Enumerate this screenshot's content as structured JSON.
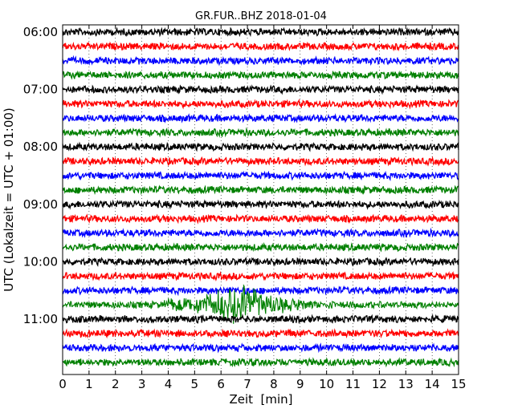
{
  "chart_data": {
    "type": "line",
    "title": "GR.FUR..BHZ 2018-01-04",
    "xlabel": "Zeit  [min]",
    "ylabel": "UTC (Lokalzeit = UTC + 01:00)",
    "xlim": [
      0,
      15
    ],
    "x_ticks": [
      "0",
      "1",
      "2",
      "3",
      "4",
      "5",
      "6",
      "7",
      "8",
      "9",
      "10",
      "11",
      "12",
      "13",
      "14",
      "15"
    ],
    "y_ticks": [
      "06:00",
      "07:00",
      "08:00",
      "09:00",
      "10:00",
      "11:00"
    ],
    "trace_interval_min": 15,
    "grid": "vertical dotted at each minute",
    "colors": [
      "#000000",
      "#ff0000",
      "#0000ff",
      "#008000"
    ],
    "traces": [
      {
        "start": "06:00",
        "color": "#000000"
      },
      {
        "start": "06:15",
        "color": "#ff0000"
      },
      {
        "start": "06:30",
        "color": "#0000ff"
      },
      {
        "start": "06:45",
        "color": "#008000"
      },
      {
        "start": "07:00",
        "color": "#000000"
      },
      {
        "start": "07:15",
        "color": "#ff0000"
      },
      {
        "start": "07:30",
        "color": "#0000ff"
      },
      {
        "start": "07:45",
        "color": "#008000"
      },
      {
        "start": "08:00",
        "color": "#000000"
      },
      {
        "start": "08:15",
        "color": "#ff0000"
      },
      {
        "start": "08:30",
        "color": "#0000ff"
      },
      {
        "start": "08:45",
        "color": "#008000"
      },
      {
        "start": "09:00",
        "color": "#000000"
      },
      {
        "start": "09:15",
        "color": "#ff0000"
      },
      {
        "start": "09:30",
        "color": "#0000ff"
      },
      {
        "start": "09:45",
        "color": "#008000"
      },
      {
        "start": "10:00",
        "color": "#000000"
      },
      {
        "start": "10:15",
        "color": "#ff0000"
      },
      {
        "start": "10:30",
        "color": "#0000ff"
      },
      {
        "start": "10:45",
        "color": "#008000",
        "event": {
          "onset_min": 3.8,
          "peak_min": 6.8,
          "end_min": 10.5
        }
      },
      {
        "start": "11:00",
        "color": "#000000"
      },
      {
        "start": "11:15",
        "color": "#ff0000"
      },
      {
        "start": "11:30",
        "color": "#0000ff"
      },
      {
        "start": "11:45",
        "color": "#008000"
      }
    ]
  }
}
